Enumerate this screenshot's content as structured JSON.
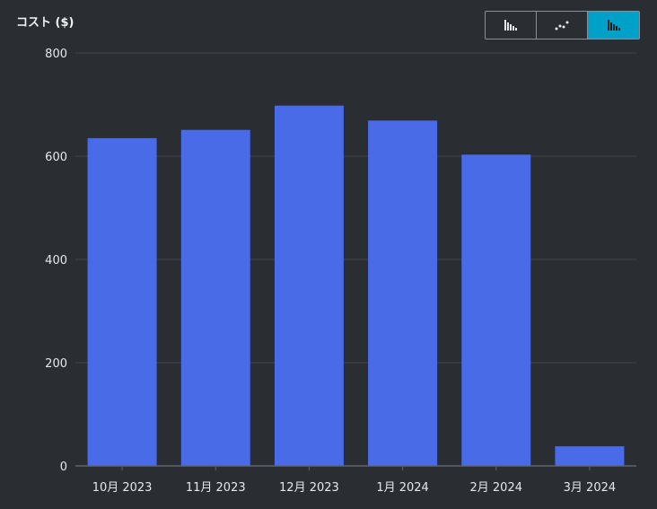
{
  "header": {
    "y_axis_title": "コスト ($)"
  },
  "toggles": [
    {
      "icon": "bar-chart-icon",
      "active": false
    },
    {
      "icon": "line-chart-icon",
      "active": false
    },
    {
      "icon": "stacked-bar-chart-icon",
      "active": true
    }
  ],
  "colors": {
    "bar": "#4a6be8",
    "grid": "#41454c",
    "axis": "#5f646d",
    "active_toggle": "#00a1c9"
  },
  "chart_data": {
    "type": "bar",
    "categories": [
      "10月 2023",
      "11月 2023",
      "12月 2023",
      "1月 2024",
      "2月 2024",
      "3月 2024"
    ],
    "values": [
      635,
      651,
      698,
      669,
      603,
      38
    ],
    "ylim": [
      0,
      800
    ],
    "yticks": [
      0,
      200,
      400,
      600,
      800
    ],
    "grid": true
  }
}
